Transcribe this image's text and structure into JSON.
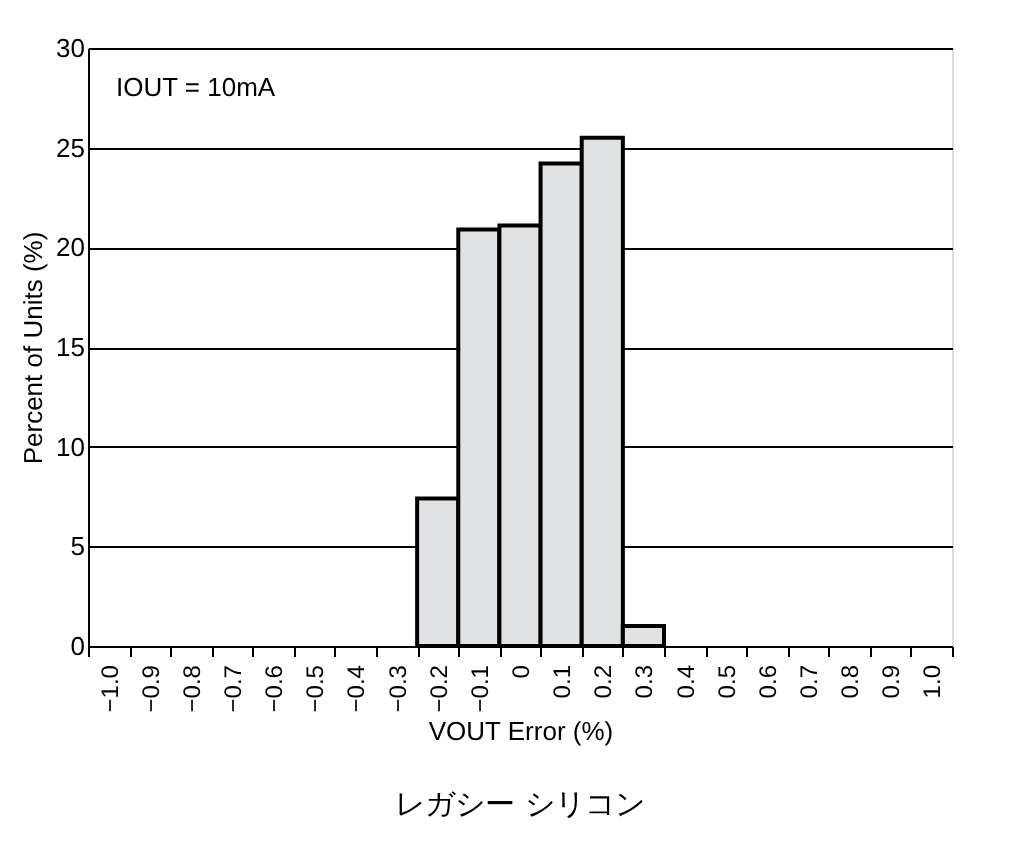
{
  "chart_data": {
    "type": "bar",
    "xlabel": "VOUT Error (%)",
    "ylabel": "Percent of Units (%)",
    "categories": [
      "−1.0",
      "−0.9",
      "−0.8",
      "−0.7",
      "−0.6",
      "−0.5",
      "−0.4",
      "−0.3",
      "−0.2",
      "−0.1",
      "0",
      "0.1",
      "0.2",
      "0.3",
      "0.4",
      "0.5",
      "0.6",
      "0.7",
      "0.8",
      "0.9",
      "1.0"
    ],
    "values": [
      null,
      null,
      null,
      null,
      null,
      null,
      null,
      null,
      7.4,
      20.9,
      21.1,
      24.2,
      25.5,
      1.0,
      null,
      null,
      null,
      null,
      null,
      null,
      null
    ],
    "color": "#e1e2e4",
    "ylim": [
      0,
      30
    ],
    "yticks": [
      0,
      5,
      10,
      15,
      20,
      25,
      30
    ],
    "grid": "y",
    "annotations": [
      "IOUT = 10mA",
      "レガシー シリコン"
    ]
  }
}
